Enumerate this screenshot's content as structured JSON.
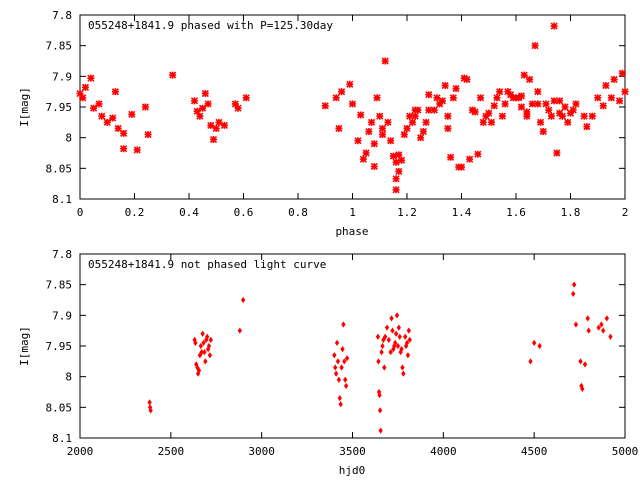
{
  "chart_data": [
    {
      "type": "scatter",
      "title": "055248+1841.9 phased with P=125.30day",
      "xlabel": "phase",
      "ylabel": "I[mag]",
      "xlim": [
        0,
        2
      ],
      "ylim": [
        7.8,
        8.1
      ],
      "y_inverted": true,
      "xticks": [
        0,
        0.2,
        0.4,
        0.6,
        0.8,
        1,
        1.2,
        1.4,
        1.6,
        1.8,
        2
      ],
      "xtick_labels": [
        "0",
        "0.2",
        "0.4",
        "0.6",
        "0.8",
        "1",
        "1.2",
        "1.4",
        "1.6",
        "1.8",
        "2"
      ],
      "yticks": [
        7.8,
        7.85,
        7.9,
        7.95,
        8,
        8.05,
        8.1
      ],
      "ytick_labels": [
        "7.8",
        "7.85",
        "7.9",
        "7.95",
        "8",
        "8.05",
        "8.1"
      ],
      "marker_color": "#ff0000",
      "points": [
        [
          0.0,
          7.928
        ],
        [
          0.01,
          7.935
        ],
        [
          0.02,
          7.918
        ],
        [
          0.04,
          7.903
        ],
        [
          0.05,
          7.952
        ],
        [
          0.07,
          7.945
        ],
        [
          0.08,
          7.965
        ],
        [
          0.1,
          7.975
        ],
        [
          0.12,
          7.968
        ],
        [
          0.13,
          7.925
        ],
        [
          0.14,
          7.985
        ],
        [
          0.16,
          7.993
        ],
        [
          0.16,
          8.018
        ],
        [
          0.19,
          7.962
        ],
        [
          0.21,
          8.02
        ],
        [
          0.24,
          7.95
        ],
        [
          0.25,
          7.995
        ],
        [
          0.34,
          7.898
        ],
        [
          0.42,
          7.94
        ],
        [
          0.43,
          7.957
        ],
        [
          0.44,
          7.965
        ],
        [
          0.45,
          7.952
        ],
        [
          0.46,
          7.928
        ],
        [
          0.47,
          7.945
        ],
        [
          0.48,
          7.98
        ],
        [
          0.49,
          8.003
        ],
        [
          0.5,
          7.985
        ],
        [
          0.51,
          7.975
        ],
        [
          0.53,
          7.98
        ],
        [
          0.57,
          7.945
        ],
        [
          0.58,
          7.952
        ],
        [
          0.61,
          7.935
        ],
        [
          0.9,
          7.948
        ],
        [
          0.94,
          7.935
        ],
        [
          0.95,
          7.985
        ],
        [
          0.96,
          7.925
        ],
        [
          0.99,
          7.913
        ],
        [
          1.0,
          7.945
        ],
        [
          1.02,
          8.005
        ],
        [
          1.03,
          7.963
        ],
        [
          1.04,
          8.035
        ],
        [
          1.05,
          8.025
        ],
        [
          1.06,
          7.99
        ],
        [
          1.07,
          7.975
        ],
        [
          1.08,
          8.01
        ],
        [
          1.08,
          8.047
        ],
        [
          1.09,
          7.935
        ],
        [
          1.1,
          7.965
        ],
        [
          1.11,
          7.995
        ],
        [
          1.11,
          7.985
        ],
        [
          1.12,
          7.875
        ],
        [
          1.13,
          7.975
        ],
        [
          1.14,
          8.005
        ],
        [
          1.15,
          8.03
        ],
        [
          1.16,
          8.04
        ],
        [
          1.16,
          8.067
        ],
        [
          1.16,
          8.085
        ],
        [
          1.17,
          8.055
        ],
        [
          1.17,
          8.028
        ],
        [
          1.18,
          8.037
        ],
        [
          1.19,
          7.995
        ],
        [
          1.2,
          7.985
        ],
        [
          1.21,
          7.965
        ],
        [
          1.22,
          7.975
        ],
        [
          1.23,
          7.965
        ],
        [
          1.23,
          7.955
        ],
        [
          1.24,
          7.955
        ],
        [
          1.25,
          8.0
        ],
        [
          1.26,
          7.99
        ],
        [
          1.27,
          7.975
        ],
        [
          1.28,
          7.955
        ],
        [
          1.28,
          7.93
        ],
        [
          1.3,
          7.955
        ],
        [
          1.31,
          7.935
        ],
        [
          1.32,
          7.945
        ],
        [
          1.33,
          7.94
        ],
        [
          1.34,
          7.915
        ],
        [
          1.35,
          7.965
        ],
        [
          1.35,
          7.985
        ],
        [
          1.36,
          8.032
        ],
        [
          1.37,
          7.935
        ],
        [
          1.38,
          7.92
        ],
        [
          1.39,
          8.048
        ],
        [
          1.4,
          8.048
        ],
        [
          1.41,
          7.903
        ],
        [
          1.42,
          7.905
        ],
        [
          1.43,
          8.035
        ],
        [
          1.44,
          7.955
        ],
        [
          1.45,
          7.958
        ],
        [
          1.46,
          8.027
        ],
        [
          1.47,
          7.935
        ],
        [
          1.48,
          7.975
        ],
        [
          1.49,
          7.965
        ],
        [
          1.5,
          7.96
        ],
        [
          1.51,
          7.975
        ],
        [
          1.52,
          7.948
        ],
        [
          1.53,
          7.935
        ],
        [
          1.54,
          7.925
        ],
        [
          1.55,
          7.965
        ],
        [
          1.56,
          7.945
        ],
        [
          1.57,
          7.925
        ],
        [
          1.58,
          7.93
        ],
        [
          1.59,
          7.935
        ],
        [
          1.6,
          7.935
        ],
        [
          1.61,
          7.935
        ],
        [
          1.62,
          7.932
        ],
        [
          1.62,
          7.95
        ],
        [
          1.63,
          7.898
        ],
        [
          1.64,
          7.965
        ],
        [
          1.64,
          7.958
        ],
        [
          1.65,
          7.905
        ],
        [
          1.66,
          7.945
        ],
        [
          1.67,
          7.85
        ],
        [
          1.68,
          7.925
        ],
        [
          1.68,
          7.945
        ],
        [
          1.69,
          7.975
        ],
        [
          1.7,
          7.99
        ],
        [
          1.71,
          7.945
        ],
        [
          1.72,
          7.955
        ],
        [
          1.73,
          7.965
        ],
        [
          1.74,
          7.94
        ],
        [
          1.74,
          7.818
        ],
        [
          1.75,
          8.025
        ],
        [
          1.76,
          7.94
        ],
        [
          1.76,
          7.96
        ],
        [
          1.77,
          7.965
        ],
        [
          1.78,
          7.95
        ],
        [
          1.79,
          7.975
        ],
        [
          1.8,
          7.96
        ],
        [
          1.81,
          7.955
        ],
        [
          1.82,
          7.945
        ],
        [
          1.85,
          7.965
        ],
        [
          1.86,
          7.982
        ],
        [
          1.88,
          7.965
        ],
        [
          1.9,
          7.935
        ],
        [
          1.92,
          7.948
        ],
        [
          1.93,
          7.915
        ],
        [
          1.95,
          7.935
        ],
        [
          1.96,
          7.905
        ],
        [
          1.98,
          7.94
        ],
        [
          1.99,
          7.895
        ],
        [
          2.0,
          7.925
        ]
      ]
    },
    {
      "type": "scatter",
      "title": "055248+1841.9 not phased light curve",
      "xlabel": "hjd0",
      "ylabel": "I[mag]",
      "xlim": [
        2000,
        5000
      ],
      "ylim": [
        7.8,
        8.1
      ],
      "y_inverted": true,
      "xticks": [
        2000,
        2500,
        3000,
        3500,
        4000,
        4500,
        5000
      ],
      "xtick_labels": [
        "2000",
        "2500",
        "3000",
        "3500",
        "4000",
        "4500",
        "5000"
      ],
      "yticks": [
        7.8,
        7.85,
        7.9,
        7.95,
        8,
        8.05,
        8.1
      ],
      "ytick_labels": [
        "7.8",
        "7.85",
        "7.9",
        "7.95",
        "8",
        "8.05",
        "8.1"
      ],
      "marker_color": "#ff0000",
      "points": [
        [
          2383,
          8.042
        ],
        [
          2386,
          8.05
        ],
        [
          2389,
          8.055
        ],
        [
          2631,
          7.94
        ],
        [
          2635,
          7.945
        ],
        [
          2640,
          7.98
        ],
        [
          2646,
          7.985
        ],
        [
          2650,
          7.995
        ],
        [
          2655,
          7.99
        ],
        [
          2660,
          7.965
        ],
        [
          2665,
          7.95
        ],
        [
          2670,
          7.96
        ],
        [
          2675,
          7.93
        ],
        [
          2680,
          7.945
        ],
        [
          2685,
          7.96
        ],
        [
          2690,
          7.975
        ],
        [
          2695,
          7.94
        ],
        [
          2700,
          7.935
        ],
        [
          2705,
          7.955
        ],
        [
          2710,
          7.95
        ],
        [
          2715,
          7.965
        ],
        [
          2720,
          7.94
        ],
        [
          2880,
          7.925
        ],
        [
          2898,
          7.875
        ],
        [
          3400,
          7.965
        ],
        [
          3405,
          7.985
        ],
        [
          3410,
          7.995
        ],
        [
          3415,
          7.945
        ],
        [
          3420,
          7.975
        ],
        [
          3425,
          8.005
        ],
        [
          3430,
          8.035
        ],
        [
          3435,
          8.045
        ],
        [
          3440,
          7.985
        ],
        [
          3445,
          7.955
        ],
        [
          3450,
          7.915
        ],
        [
          3455,
          7.975
        ],
        [
          3460,
          8.005
        ],
        [
          3465,
          8.015
        ],
        [
          3470,
          7.97
        ],
        [
          3640,
          7.935
        ],
        [
          3643,
          7.975
        ],
        [
          3646,
          8.025
        ],
        [
          3649,
          8.03
        ],
        [
          3652,
          8.055
        ],
        [
          3655,
          8.088
        ],
        [
          3660,
          7.96
        ],
        [
          3665,
          7.95
        ],
        [
          3670,
          7.94
        ],
        [
          3675,
          7.985
        ],
        [
          3680,
          7.935
        ],
        [
          3690,
          7.92
        ],
        [
          3700,
          7.94
        ],
        [
          3710,
          7.96
        ],
        [
          3715,
          7.905
        ],
        [
          3720,
          7.925
        ],
        [
          3725,
          7.955
        ],
        [
          3730,
          7.95
        ],
        [
          3735,
          7.945
        ],
        [
          3740,
          7.93
        ],
        [
          3745,
          7.9
        ],
        [
          3750,
          7.95
        ],
        [
          3755,
          7.92
        ],
        [
          3760,
          7.935
        ],
        [
          3765,
          7.96
        ],
        [
          3770,
          7.955
        ],
        [
          3775,
          7.985
        ],
        [
          3780,
          7.995
        ],
        [
          3790,
          7.935
        ],
        [
          3795,
          7.95
        ],
        [
          3800,
          7.945
        ],
        [
          3805,
          7.965
        ],
        [
          3810,
          7.925
        ],
        [
          3815,
          7.94
        ],
        [
          4480,
          7.975
        ],
        [
          4500,
          7.945
        ],
        [
          4530,
          7.95
        ],
        [
          4715,
          7.865
        ],
        [
          4720,
          7.85
        ],
        [
          4730,
          7.915
        ],
        [
          4755,
          7.975
        ],
        [
          4760,
          8.015
        ],
        [
          4765,
          8.02
        ],
        [
          4780,
          7.98
        ],
        [
          4795,
          7.905
        ],
        [
          4800,
          7.925
        ],
        [
          4855,
          7.92
        ],
        [
          4870,
          7.915
        ],
        [
          4880,
          7.925
        ],
        [
          4900,
          7.905
        ],
        [
          4920,
          7.935
        ]
      ]
    }
  ]
}
